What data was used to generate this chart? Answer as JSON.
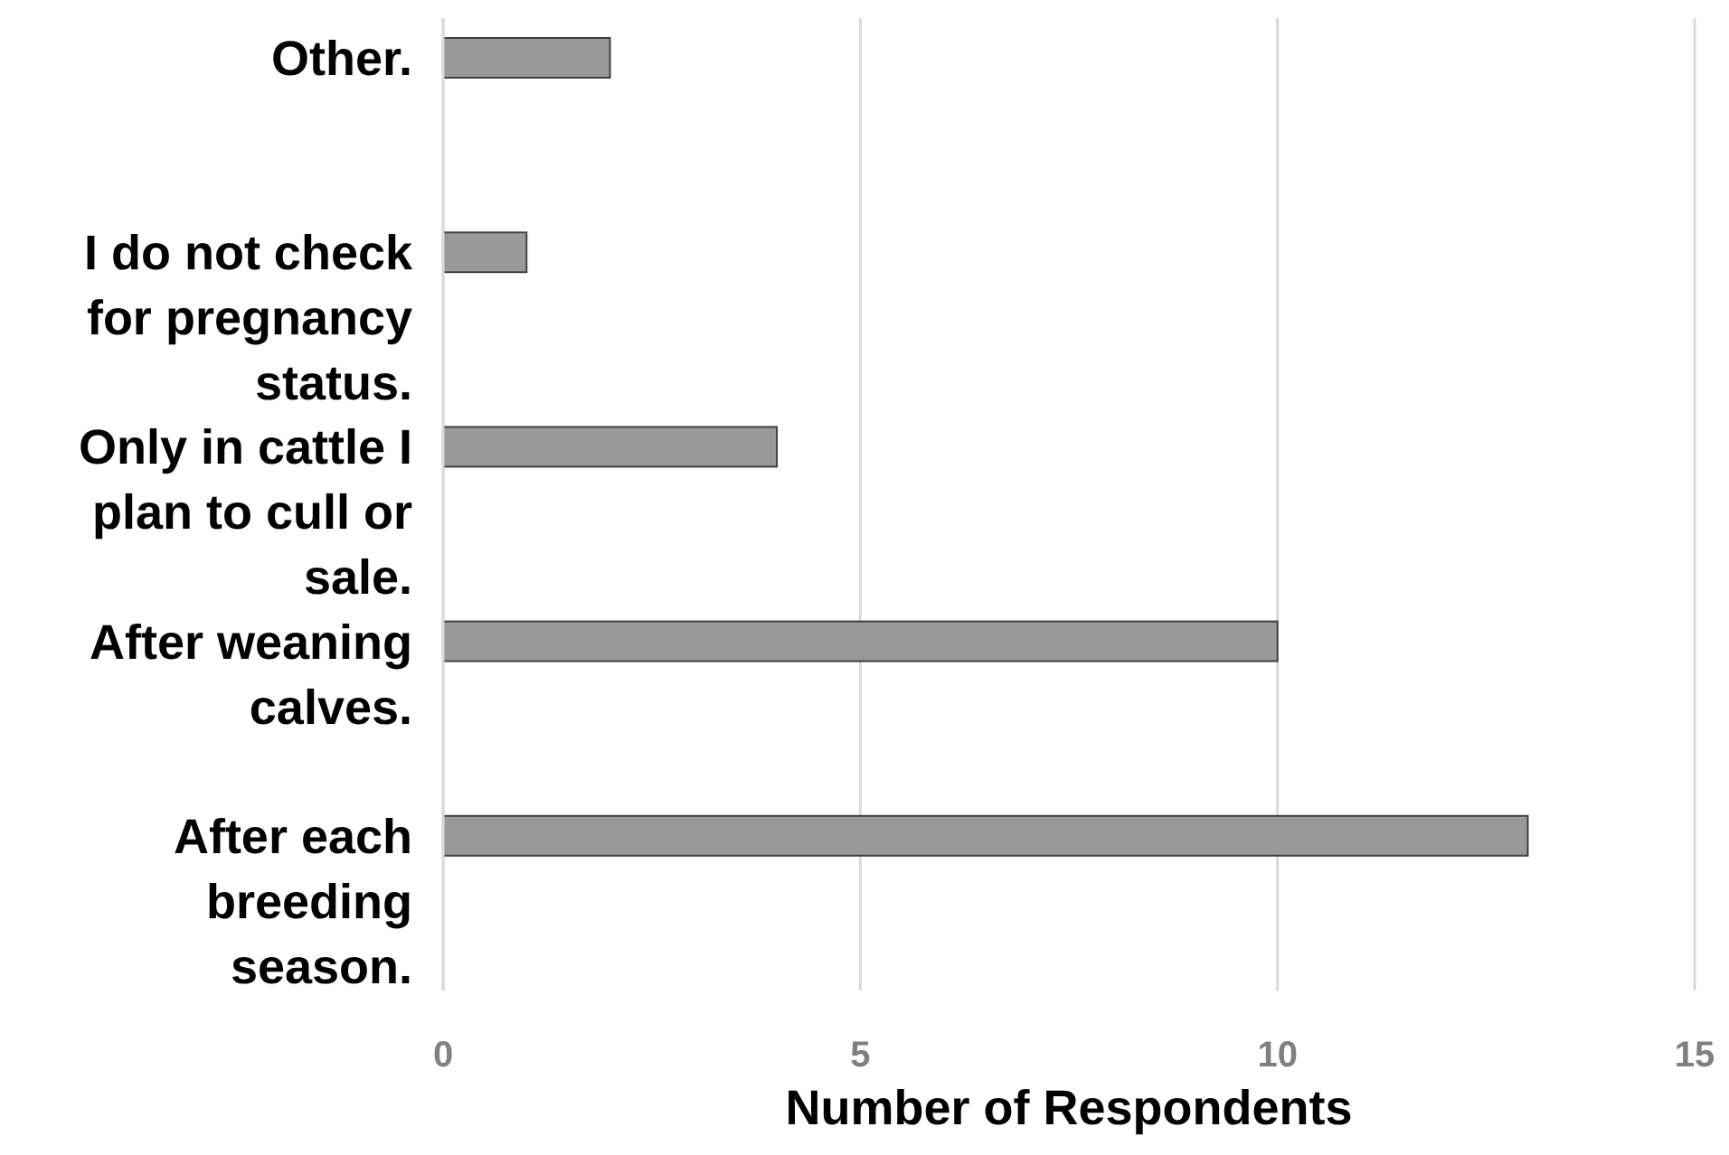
{
  "chart_data": {
    "type": "bar",
    "orientation": "horizontal",
    "categories": [
      "Other.",
      "I do not check for pregnancy status.",
      "Only in cattle I plan to cull or sale.",
      "After weaning calves.",
      "After each breeding season."
    ],
    "values": [
      2,
      1,
      4,
      10,
      13
    ],
    "color": "#999999",
    "xlim": [
      0,
      15
    ],
    "xticks": [
      0,
      5,
      10,
      15
    ],
    "grid": "x",
    "xlabel": "Number of Respondents"
  }
}
